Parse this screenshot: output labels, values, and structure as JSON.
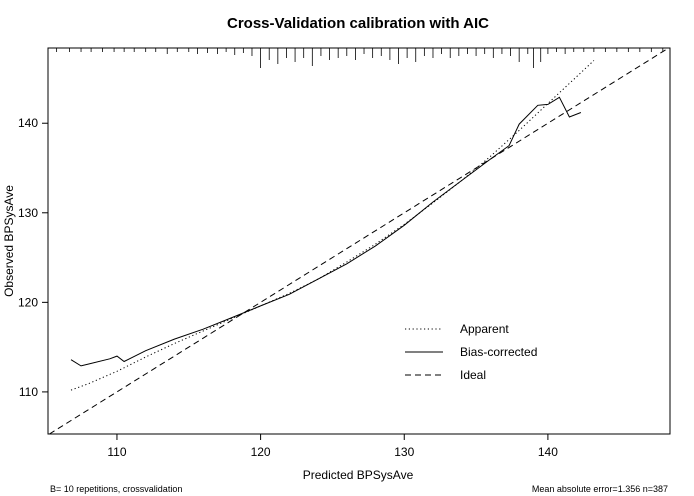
{
  "chart_data": {
    "type": "line",
    "title": "Cross-Validation calibration with AIC",
    "xlabel": "Predicted BPSysAve",
    "ylabel": "Observed BPSysAve",
    "xlim": [
      105.2,
      148.5
    ],
    "ylim": [
      105.3,
      148.4
    ],
    "x_ticks": [
      110,
      120,
      130,
      140
    ],
    "y_ticks": [
      110,
      120,
      130,
      140
    ],
    "series": [
      {
        "name": "Apparent",
        "style": "dotted",
        "points": [
          [
            106.8,
            110.2
          ],
          [
            108,
            110.9
          ],
          [
            110,
            112.3
          ],
          [
            112,
            113.9
          ],
          [
            114,
            115.4
          ],
          [
            116,
            116.8
          ],
          [
            118,
            118.2
          ],
          [
            120,
            119.6
          ],
          [
            122,
            121.0
          ],
          [
            124,
            122.6
          ],
          [
            126,
            124.5
          ],
          [
            128,
            126.5
          ],
          [
            130,
            128.7
          ],
          [
            132,
            131.1
          ],
          [
            134,
            133.6
          ],
          [
            136,
            136.3
          ],
          [
            138,
            139.2
          ],
          [
            140,
            142.2
          ],
          [
            142,
            145.2
          ],
          [
            143.2,
            147.0
          ]
        ]
      },
      {
        "name": "Bias-corrected",
        "style": "solid",
        "points": [
          [
            106.8,
            113.6
          ],
          [
            107.5,
            112.9
          ],
          [
            108,
            113.1
          ],
          [
            109.5,
            113.7
          ],
          [
            110,
            114.0
          ],
          [
            110.5,
            113.4
          ],
          [
            112,
            114.6
          ],
          [
            114,
            115.9
          ],
          [
            116,
            117.0
          ],
          [
            118,
            118.3
          ],
          [
            120,
            119.6
          ],
          [
            122,
            120.9
          ],
          [
            124,
            122.6
          ],
          [
            126,
            124.3
          ],
          [
            128,
            126.3
          ],
          [
            130,
            128.6
          ],
          [
            132,
            131.2
          ],
          [
            134,
            133.6
          ],
          [
            136,
            136.0
          ],
          [
            137.3,
            137.5
          ],
          [
            138,
            139.9
          ],
          [
            139.3,
            142.0
          ],
          [
            140,
            142.1
          ],
          [
            140.8,
            142.9
          ],
          [
            141.5,
            140.7
          ],
          [
            142.3,
            141.2
          ]
        ]
      },
      {
        "name": "Ideal",
        "style": "dashed",
        "points": [
          [
            105.3,
            105.3
          ],
          [
            148.4,
            148.4
          ]
        ]
      }
    ],
    "rug": [
      {
        "x": 105.8,
        "h": 4
      },
      {
        "x": 106.7,
        "h": 4
      },
      {
        "x": 107.5,
        "h": 4
      },
      {
        "x": 108.2,
        "h": 4
      },
      {
        "x": 109.0,
        "h": 4
      },
      {
        "x": 109.8,
        "h": 4
      },
      {
        "x": 110.5,
        "h": 4
      },
      {
        "x": 111.2,
        "h": 4
      },
      {
        "x": 112.0,
        "h": 4
      },
      {
        "x": 112.7,
        "h": 4
      },
      {
        "x": 113.5,
        "h": 6
      },
      {
        "x": 114.2,
        "h": 4
      },
      {
        "x": 115.0,
        "h": 4
      },
      {
        "x": 115.6,
        "h": 6
      },
      {
        "x": 116.3,
        "h": 5
      },
      {
        "x": 117.0,
        "h": 6
      },
      {
        "x": 117.6,
        "h": 4
      },
      {
        "x": 118.2,
        "h": 7
      },
      {
        "x": 118.8,
        "h": 5
      },
      {
        "x": 119.4,
        "h": 8
      },
      {
        "x": 120.0,
        "h": 20
      },
      {
        "x": 120.6,
        "h": 12
      },
      {
        "x": 121.2,
        "h": 16
      },
      {
        "x": 121.8,
        "h": 10
      },
      {
        "x": 122.4,
        "h": 14
      },
      {
        "x": 123.0,
        "h": 10
      },
      {
        "x": 123.6,
        "h": 18
      },
      {
        "x": 124.2,
        "h": 8
      },
      {
        "x": 124.8,
        "h": 12
      },
      {
        "x": 125.4,
        "h": 10
      },
      {
        "x": 126.0,
        "h": 8
      },
      {
        "x": 126.6,
        "h": 12
      },
      {
        "x": 127.2,
        "h": 6
      },
      {
        "x": 127.8,
        "h": 10
      },
      {
        "x": 128.4,
        "h": 8
      },
      {
        "x": 129.0,
        "h": 12
      },
      {
        "x": 129.6,
        "h": 16
      },
      {
        "x": 130.2,
        "h": 10
      },
      {
        "x": 130.8,
        "h": 14
      },
      {
        "x": 131.4,
        "h": 8
      },
      {
        "x": 132.0,
        "h": 10
      },
      {
        "x": 132.6,
        "h": 6
      },
      {
        "x": 133.2,
        "h": 10
      },
      {
        "x": 133.8,
        "h": 8
      },
      {
        "x": 134.4,
        "h": 6
      },
      {
        "x": 135.0,
        "h": 8
      },
      {
        "x": 135.6,
        "h": 6
      },
      {
        "x": 136.2,
        "h": 10
      },
      {
        "x": 136.8,
        "h": 6
      },
      {
        "x": 137.4,
        "h": 8
      },
      {
        "x": 138.0,
        "h": 14
      },
      {
        "x": 138.6,
        "h": 6
      },
      {
        "x": 139.0,
        "h": 20
      },
      {
        "x": 139.5,
        "h": 14
      },
      {
        "x": 140.0,
        "h": 6
      },
      {
        "x": 140.6,
        "h": 4
      },
      {
        "x": 141.2,
        "h": 6
      },
      {
        "x": 141.8,
        "h": 4
      },
      {
        "x": 142.5,
        "h": 4
      },
      {
        "x": 143.2,
        "h": 4
      },
      {
        "x": 144.0,
        "h": 4
      },
      {
        "x": 144.8,
        "h": 4
      },
      {
        "x": 145.6,
        "h": 4
      },
      {
        "x": 146.4,
        "h": 4
      },
      {
        "x": 147.2,
        "h": 4
      },
      {
        "x": 148.0,
        "h": 4
      }
    ],
    "legend": {
      "position": "bottom-right",
      "entries": [
        {
          "name": "Apparent",
          "style": "dotted"
        },
        {
          "name": "Bias-corrected",
          "style": "solid"
        },
        {
          "name": "Ideal",
          "style": "dashed"
        }
      ]
    },
    "footnote_left": "B= 10 repetitions, crossvalidation",
    "footnote_right": "Mean absolute error=1.356 n=387"
  }
}
